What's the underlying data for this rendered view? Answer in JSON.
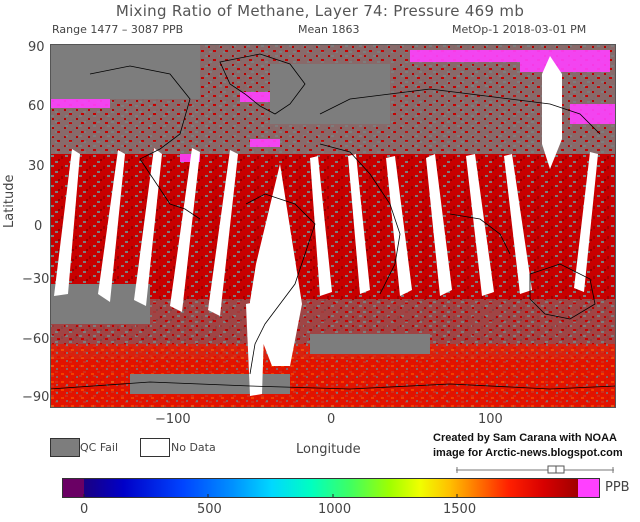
{
  "header": {
    "title": "Mixing Ratio of Methane, Layer 74: Pressure 469 mb",
    "range": "Range 1477 – 3087 PPB",
    "mean": "Mean 1863",
    "source": "MetOp-1 2018-03-01 PM"
  },
  "axes": {
    "x_label": "Longitude",
    "y_label": "Latitude",
    "x_ticks": [
      "−100",
      "0",
      "100"
    ],
    "y_ticks": [
      "90",
      "60",
      "30",
      "0",
      "−30",
      "−60",
      "−90"
    ]
  },
  "legend": {
    "qc_fail": "QC Fail",
    "no_data": "No Data",
    "qc_fail_color": "#7d7d7d",
    "no_data_color": "#ffffff"
  },
  "credit": {
    "line1": "Created by Sam Carana with NOAA",
    "line2": "image for Arctic-news.blogspot.com"
  },
  "colorbar": {
    "unit": "PPB",
    "ticks": [
      "0",
      "500",
      "1000",
      "1500"
    ],
    "colors": [
      "#6a0064",
      "#1a0082",
      "#0000c8",
      "#0044ff",
      "#0090ff",
      "#00d8ff",
      "#00ffc0",
      "#40ff60",
      "#a0ff00",
      "#f0ff00",
      "#ffc000",
      "#ff7000",
      "#ff2000",
      "#d80000",
      "#a00000",
      "#ff40ff"
    ]
  },
  "map_colors": {
    "background_gray": "#7d7d7d",
    "red": "#c80000",
    "dark_red": "#8c0000",
    "orange": "#ff4000",
    "magenta": "#ff40ff",
    "coast": "#000000"
  }
}
